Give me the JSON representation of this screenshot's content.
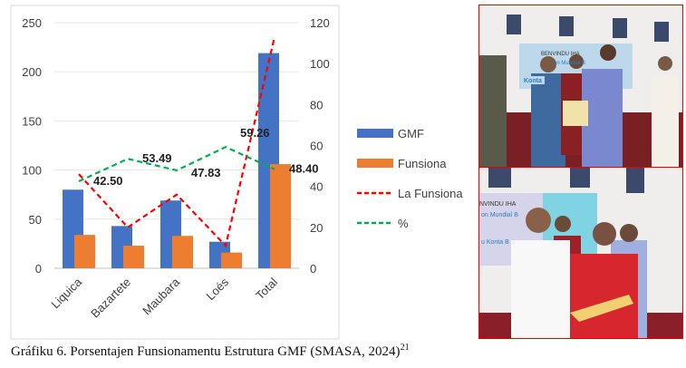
{
  "chart_data": {
    "type": "bar",
    "categories": [
      "Liquica",
      "Bazartete",
      "Maubara",
      "Loes",
      "Total"
    ],
    "category_labels": [
      "Liquica",
      "Bazartete",
      "Maubara",
      "Loés",
      "Total"
    ],
    "series": [
      {
        "name": "GMF",
        "kind": "bar",
        "axis": "left",
        "color": "#4472C4",
        "values": [
          80,
          43,
          69,
          27,
          219
        ]
      },
      {
        "name": "Funsiona",
        "kind": "bar",
        "axis": "left",
        "color": "#ED7D31",
        "values": [
          34,
          23,
          33,
          16,
          106
        ]
      },
      {
        "name": "La Funsiona",
        "kind": "line",
        "style": "dashed",
        "axis": "right",
        "color": "#FF0000",
        "values": [
          46,
          20,
          36,
          11,
          113
        ]
      },
      {
        "name": "%",
        "kind": "line",
        "style": "dashed",
        "axis": "right",
        "color": "#00B050",
        "values": [
          42.5,
          53.49,
          47.83,
          59.26,
          48.4
        ],
        "data_labels": [
          "42.50",
          "53.49",
          "47.83",
          "59.26",
          "48.40"
        ]
      }
    ],
    "left_axis": {
      "ylim": [
        0,
        250
      ],
      "ticks": [
        "0",
        "50",
        "100",
        "150",
        "200",
        "250"
      ]
    },
    "right_axis": {
      "ylim": [
        0,
        120
      ],
      "ticks": [
        "0",
        "20",
        "40",
        "60",
        "80",
        "100",
        "120"
      ]
    },
    "grid": true,
    "legend_position": "right"
  },
  "photos": {
    "top_banner": [
      "BENVINDU IHA",
      "on Mundial B",
      "Konta"
    ],
    "bottom_banner": [
      "NVINDU IHA",
      "on Mundial B",
      "u Konta B"
    ]
  },
  "caption": {
    "text": "Gráfiku 6. Porsentajen Funsionamentu Estrutura GMF (SMASA, 2024)",
    "ref": "21"
  }
}
